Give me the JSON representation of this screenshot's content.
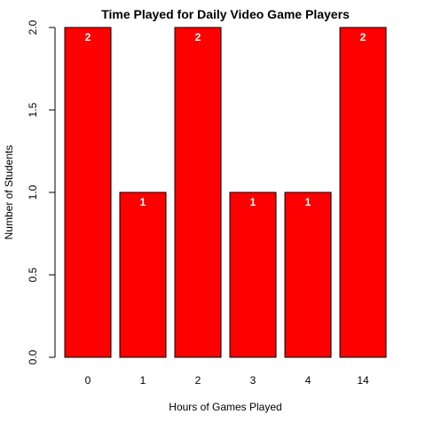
{
  "chart_data": {
    "type": "bar",
    "title": "Time Played for Daily Video Game Players",
    "xlabel": "Hours of Games Played",
    "ylabel": "Number of Students",
    "categories": [
      "0",
      "1",
      "2",
      "3",
      "4",
      "14"
    ],
    "values": [
      2,
      1,
      2,
      1,
      1,
      2
    ],
    "data_labels": [
      "2",
      "1",
      "2",
      "1",
      "1",
      "2"
    ],
    "ylim": [
      0,
      2
    ],
    "yticks": [
      "0.0",
      "0.5",
      "1.0",
      "1.5",
      "2.0"
    ],
    "bar_color": "#ff0000",
    "label_color": "#ffffff",
    "grid": false,
    "legend": "none"
  }
}
